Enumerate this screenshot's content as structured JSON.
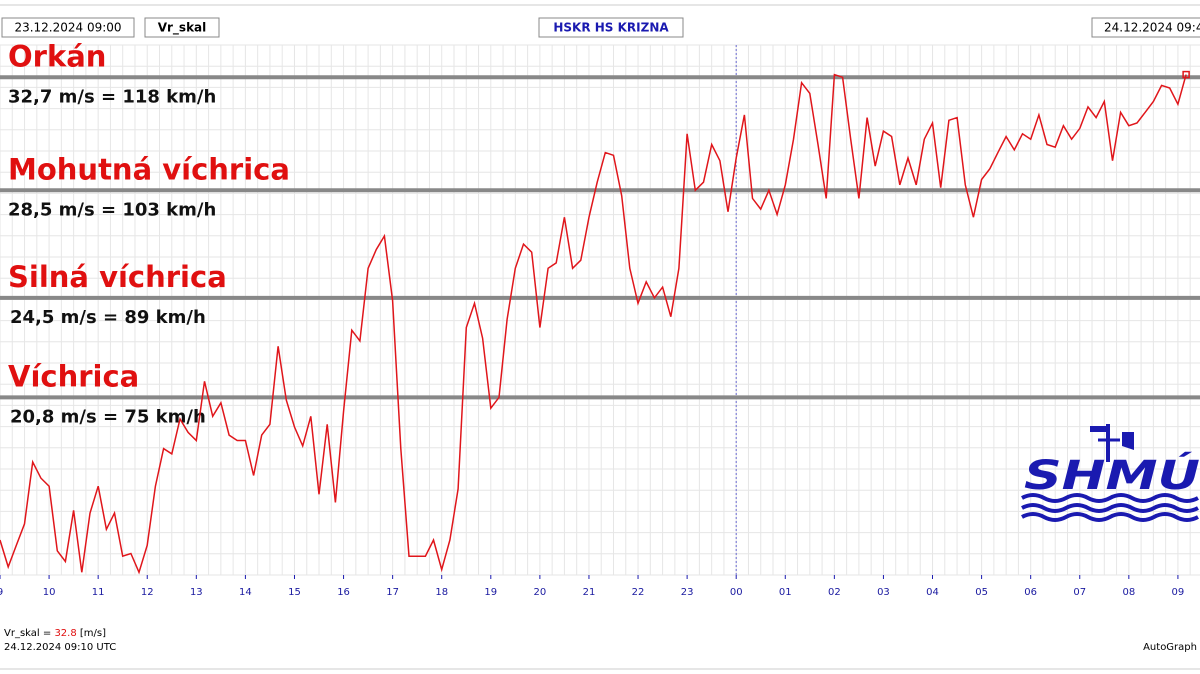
{
  "chart_data": {
    "type": "line",
    "header": {
      "start": "23.12.2024 09:00",
      "variable": "Vr_skal",
      "station": "HSKR HS KRIZNA",
      "end": "24.12.2024 09:4"
    },
    "footer": {
      "current_label": "Vr_skal =",
      "current_value": 32.8,
      "current_unit": "[m/s]",
      "timestamp": "24.12.2024 09:10 UTC",
      "software": "AutoGraph"
    },
    "logo": "SHMÚ",
    "thresholds": [
      {
        "name": "Orkán",
        "label": "32,7 m/s = 118 km/h",
        "value": 32.7
      },
      {
        "name": "Mohutná víchrica",
        "label": "28,5 m/s = 103 km/h",
        "value": 28.5
      },
      {
        "name": "Silná víchrica",
        "label": "24,5 m/s = 89 km/h",
        "value": 24.5
      },
      {
        "name": "Víchrica",
        "label": "20,8 m/s = 75 km/h",
        "value": 20.8
      }
    ],
    "xlim": [
      9,
      33.45
    ],
    "ylim": [
      14.2,
      33.9
    ],
    "xticks": [
      9,
      10,
      11,
      12,
      13,
      14,
      15,
      16,
      17,
      18,
      19,
      20,
      21,
      22,
      23,
      {
        "value": 24,
        "label": "00"
      },
      {
        "value": 25,
        "label": "01"
      },
      {
        "value": 26,
        "label": "02"
      },
      {
        "value": 27,
        "label": "03"
      },
      {
        "value": 28,
        "label": "04"
      },
      {
        "value": 29,
        "label": "05"
      },
      {
        "value": 30,
        "label": "06"
      },
      {
        "value": 31,
        "label": "07"
      },
      {
        "value": 32,
        "label": "08"
      },
      {
        "value": 33,
        "label": "09"
      }
    ],
    "grid": true,
    "series": [
      {
        "name": "Vr_skal",
        "color": "#e0161b",
        "x": [
          9,
          9.167,
          9.333,
          9.5,
          9.667,
          9.833,
          10,
          10.167,
          10.333,
          10.5,
          10.667,
          10.833,
          11,
          11.167,
          11.333,
          11.5,
          11.667,
          11.833,
          12,
          12.167,
          12.333,
          12.5,
          12.667,
          12.833,
          13,
          13.167,
          13.333,
          13.5,
          13.667,
          13.833,
          14,
          14.167,
          14.333,
          14.5,
          14.667,
          14.833,
          15,
          15.167,
          15.333,
          15.5,
          15.667,
          15.833,
          16,
          16.167,
          16.333,
          16.5,
          16.667,
          16.833,
          17,
          17.167,
          17.333,
          17.5,
          17.667,
          17.833,
          18,
          18.167,
          18.333,
          18.5,
          18.667,
          18.833,
          19,
          19.167,
          19.333,
          19.5,
          19.667,
          19.833,
          20,
          20.167,
          20.333,
          20.5,
          20.667,
          20.833,
          21,
          21.167,
          21.333,
          21.5,
          21.667,
          21.833,
          22,
          22.167,
          22.333,
          22.5,
          22.667,
          22.833,
          23,
          23.167,
          23.333,
          23.5,
          23.667,
          23.833,
          24,
          24.167,
          24.333,
          24.5,
          24.667,
          24.833,
          25,
          25.167,
          25.333,
          25.5,
          25.667,
          25.833,
          26,
          26.167,
          26.333,
          26.5,
          26.667,
          26.833,
          27,
          27.167,
          27.333,
          27.5,
          27.667,
          27.833,
          28,
          28.167,
          28.333,
          28.5,
          28.667,
          28.833,
          29,
          29.167,
          29.333,
          29.5,
          29.667,
          29.833,
          30,
          30.167,
          30.333,
          30.5,
          30.667,
          30.833,
          31,
          31.167,
          31.333,
          31.5,
          31.667,
          31.833,
          32,
          32.167,
          32.333,
          32.5,
          32.667,
          32.833,
          33,
          33.167
        ],
        "values": [
          15.5,
          14.5,
          15.3,
          16.1,
          18.4,
          17.8,
          17.5,
          15.1,
          14.7,
          16.6,
          14.3,
          16.5,
          17.5,
          15.9,
          16.5,
          14.9,
          15.0,
          14.3,
          15.3,
          17.5,
          18.9,
          18.7,
          20.0,
          19.5,
          19.2,
          21.4,
          20.1,
          20.6,
          19.4,
          19.2,
          19.2,
          17.9,
          19.4,
          19.8,
          22.7,
          20.7,
          19.7,
          19.0,
          20.1,
          17.2,
          19.8,
          16.9,
          20.3,
          23.3,
          22.9,
          25.6,
          26.3,
          26.8,
          24.4,
          18.9,
          14.9,
          14.9,
          14.9,
          15.5,
          14.4,
          15.5,
          17.4,
          23.4,
          24.3,
          23.0,
          20.4,
          20.8,
          23.7,
          25.6,
          26.5,
          26.2,
          23.4,
          25.6,
          25.8,
          27.5,
          25.6,
          25.9,
          27.5,
          28.8,
          29.9,
          29.8,
          28.3,
          25.6,
          24.3,
          25.1,
          24.5,
          24.9,
          23.8,
          25.6,
          30.6,
          28.5,
          28.8,
          30.2,
          29.6,
          27.7,
          29.7,
          31.3,
          28.2,
          27.8,
          28.5,
          27.6,
          28.7,
          30.4,
          32.5,
          32.1,
          30.2,
          28.2,
          32.8,
          32.7,
          30.4,
          28.2,
          31.2,
          29.4,
          30.7,
          30.5,
          28.7,
          29.7,
          28.7,
          30.4,
          31.0,
          28.6,
          31.1,
          31.2,
          28.7,
          27.5,
          28.9,
          29.3,
          29.9,
          30.5,
          30.0,
          30.6,
          30.4,
          31.3,
          30.2,
          30.1,
          30.9,
          30.4,
          30.8,
          31.6,
          31.2,
          31.8,
          29.6,
          31.4,
          30.9,
          31.0,
          31.4,
          31.8,
          32.4,
          32.3,
          31.7,
          32.8
        ]
      }
    ]
  }
}
